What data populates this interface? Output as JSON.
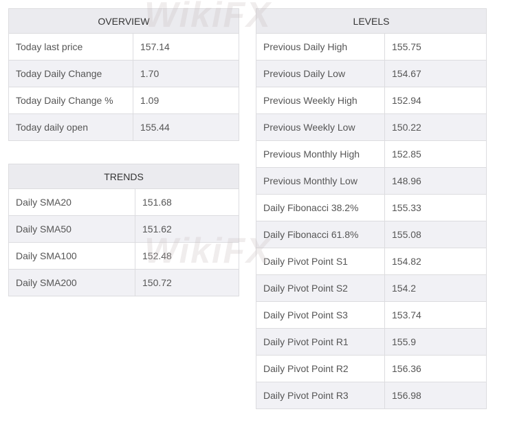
{
  "overview": {
    "title": "OVERVIEW",
    "rows": [
      {
        "label": "Today last price",
        "value": "157.14"
      },
      {
        "label": "Today Daily Change",
        "value": "1.70"
      },
      {
        "label": "Today Daily Change %",
        "value": "1.09"
      },
      {
        "label": "Today daily open",
        "value": "155.44"
      }
    ]
  },
  "trends": {
    "title": "TRENDS",
    "rows": [
      {
        "label": "Daily SMA20",
        "value": "151.68"
      },
      {
        "label": "Daily SMA50",
        "value": "151.62"
      },
      {
        "label": "Daily SMA100",
        "value": "152.48"
      },
      {
        "label": "Daily SMA200",
        "value": "150.72"
      }
    ]
  },
  "levels": {
    "title": "LEVELS",
    "rows": [
      {
        "label": "Previous Daily High",
        "value": "155.75"
      },
      {
        "label": "Previous Daily Low",
        "value": "154.67"
      },
      {
        "label": "Previous Weekly High",
        "value": "152.94"
      },
      {
        "label": "Previous Weekly Low",
        "value": "150.22"
      },
      {
        "label": "Previous Monthly High",
        "value": "152.85"
      },
      {
        "label": "Previous Monthly Low",
        "value": "148.96"
      },
      {
        "label": "Daily Fibonacci 38.2%",
        "value": "155.33"
      },
      {
        "label": "Daily Fibonacci 61.8%",
        "value": "155.08"
      },
      {
        "label": "Daily Pivot Point S1",
        "value": "154.82"
      },
      {
        "label": "Daily Pivot Point S2",
        "value": "154.2"
      },
      {
        "label": "Daily Pivot Point S3",
        "value": "153.74"
      },
      {
        "label": "Daily Pivot Point R1",
        "value": "155.9"
      },
      {
        "label": "Daily Pivot Point R2",
        "value": "156.36"
      },
      {
        "label": "Daily Pivot Point R3",
        "value": "156.98"
      }
    ]
  },
  "watermark": "WikiFX"
}
